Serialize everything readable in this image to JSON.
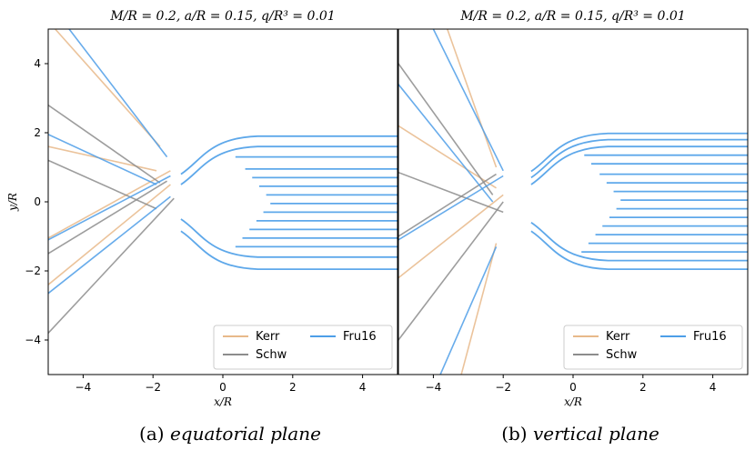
{
  "chart_data": [
    {
      "type": "line",
      "title": "M/R = 0.2,   a/R = 0.15,   q/R³ = 0.01",
      "xlabel": "x/R",
      "ylabel": "y/R",
      "xlim": [
        -5,
        5
      ],
      "ylim": [
        -5,
        5
      ],
      "xticks": [
        "−4",
        "−2",
        "0",
        "2",
        "4"
      ],
      "yticks": [
        "−4",
        "−2",
        "0",
        "2",
        "4"
      ],
      "caption_letter": "(a)",
      "caption_text": "equatorial plane",
      "legend_position": "lower right",
      "grid": false,
      "series": [
        {
          "name": "Kerr",
          "color": "#e8b98a"
        },
        {
          "name": "Schw",
          "color": "#8c8c8c"
        },
        {
          "name": "Fru16",
          "color": "#4d9ee8"
        }
      ],
      "rays": {
        "start_x": 5,
        "impact_parameters": [
          -1.95,
          -1.6,
          -1.3,
          -1.05,
          -0.8,
          -0.55,
          -0.3,
          -0.05,
          0.2,
          0.45,
          0.7,
          0.95,
          1.3,
          1.6,
          1.9
        ],
        "escape_lines": [
          {
            "series": "Kerr",
            "points": [
              [
                -4.8,
                5.0
              ],
              [
                -1.8,
                1.6
              ]
            ]
          },
          {
            "series": "Kerr",
            "points": [
              [
                -5,
                1.6
              ],
              [
                -1.9,
                0.9
              ]
            ]
          },
          {
            "series": "Kerr",
            "points": [
              [
                -5,
                -1.05
              ],
              [
                -1.5,
                0.9
              ]
            ]
          },
          {
            "series": "Kerr",
            "points": [
              [
                -5,
                -2.4
              ],
              [
                -1.5,
                0.5
              ]
            ]
          },
          {
            "series": "Schw",
            "points": [
              [
                -5,
                2.8
              ],
              [
                -1.8,
                0.55
              ]
            ]
          },
          {
            "series": "Schw",
            "points": [
              [
                -5,
                1.2
              ],
              [
                -1.9,
                -0.2
              ]
            ]
          },
          {
            "series": "Schw",
            "points": [
              [
                -5,
                -1.5
              ],
              [
                -1.6,
                0.6
              ]
            ]
          },
          {
            "series": "Schw",
            "points": [
              [
                -5,
                -3.8
              ],
              [
                -1.4,
                0.1
              ]
            ]
          },
          {
            "series": "Fru16",
            "points": [
              [
                -4.4,
                5.0
              ],
              [
                -1.6,
                1.3
              ]
            ]
          },
          {
            "series": "Fru16",
            "points": [
              [
                -5,
                1.95
              ],
              [
                -1.9,
                0.5
              ]
            ]
          },
          {
            "series": "Fru16",
            "points": [
              [
                -5,
                -1.1
              ],
              [
                -1.5,
                0.75
              ]
            ]
          },
          {
            "series": "Fru16",
            "points": [
              [
                -5,
                -2.65
              ],
              [
                -1.5,
                0.15
              ]
            ]
          }
        ]
      }
    },
    {
      "type": "line",
      "title": "M/R = 0.2,   a/R = 0.15,   q/R³ = 0.01",
      "xlabel": "x/R",
      "ylabel": "",
      "xlim": [
        -5,
        5
      ],
      "ylim": [
        -5,
        5
      ],
      "xticks": [
        "−4",
        "−2",
        "0",
        "2",
        "4"
      ],
      "caption_letter": "(b)",
      "caption_text": "vertical plane",
      "legend_position": "lower right",
      "grid": false,
      "series": [
        {
          "name": "Kerr",
          "color": "#e8b98a"
        },
        {
          "name": "Schw",
          "color": "#8c8c8c"
        },
        {
          "name": "Fru16",
          "color": "#4d9ee8"
        }
      ],
      "rays": {
        "start_x": 5,
        "impact_parameters": [
          -1.95,
          -1.7,
          -1.45,
          -1.2,
          -0.95,
          -0.7,
          -0.45,
          -0.2,
          0.05,
          0.3,
          0.55,
          0.8,
          1.1,
          1.35,
          1.6,
          1.8,
          1.98
        ],
        "escape_lines": [
          {
            "series": "Kerr",
            "points": [
              [
                -3.6,
                5.0
              ],
              [
                -2.2,
                1.0
              ]
            ]
          },
          {
            "series": "Kerr",
            "points": [
              [
                -5,
                2.2
              ],
              [
                -2.2,
                0.4
              ]
            ]
          },
          {
            "series": "Kerr",
            "points": [
              [
                -5,
                -2.2
              ],
              [
                -2.0,
                0.2
              ]
            ]
          },
          {
            "series": "Kerr",
            "points": [
              [
                -3.2,
                -5.0
              ],
              [
                -2.2,
                -1.2
              ]
            ]
          },
          {
            "series": "Schw",
            "points": [
              [
                -5,
                4.0
              ],
              [
                -2.3,
                0.2
              ]
            ]
          },
          {
            "series": "Schw",
            "points": [
              [
                -5,
                0.85
              ],
              [
                -2.0,
                -0.3
              ]
            ]
          },
          {
            "series": "Schw",
            "points": [
              [
                -5,
                -1.0
              ],
              [
                -2.2,
                0.8
              ]
            ]
          },
          {
            "series": "Schw",
            "points": [
              [
                -5,
                -4.0
              ],
              [
                -2.0,
                0.0
              ]
            ]
          },
          {
            "series": "Fru16",
            "points": [
              [
                -4.0,
                5.0
              ],
              [
                -2.0,
                0.9
              ]
            ]
          },
          {
            "series": "Fru16",
            "points": [
              [
                -5,
                3.4
              ],
              [
                -2.3,
                0.0
              ]
            ]
          },
          {
            "series": "Fru16",
            "points": [
              [
                -5,
                -1.1
              ],
              [
                -2.0,
                0.75
              ]
            ]
          },
          {
            "series": "Fru16",
            "points": [
              [
                -3.8,
                -5.0
              ],
              [
                -2.2,
                -1.3
              ]
            ]
          }
        ]
      }
    }
  ]
}
